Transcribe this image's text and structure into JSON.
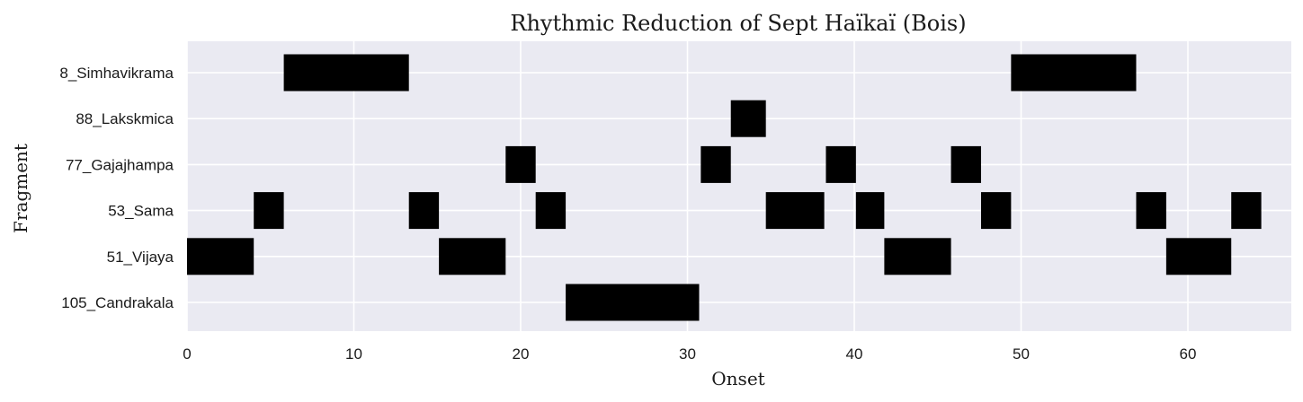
{
  "chart_data": {
    "type": "bar",
    "orientation": "horizontal-timeline",
    "title": "Rhythmic Reduction of Sept Haïkaï (Bois)",
    "xlabel": "Onset",
    "ylabel": "Fragment",
    "xlim": [
      0,
      66.2
    ],
    "xticks": [
      0,
      10,
      20,
      30,
      40,
      50,
      60
    ],
    "xtick_labels": [
      "0",
      "10",
      "20",
      "30",
      "40",
      "50",
      "60"
    ],
    "categories": [
      "8_Simhavikrama",
      "88_Lakskmica",
      "77_Gajajhampa",
      "53_Sama",
      "51_Vijaya",
      "105_Candrakala"
    ],
    "grid": true,
    "colors": {
      "plot_background": "#eaeaf2",
      "bar": "#000000",
      "grid": "#ffffff"
    },
    "segments": [
      {
        "fragment": "8_Simhavikrama",
        "start": 5.8,
        "end": 13.3
      },
      {
        "fragment": "8_Simhavikrama",
        "start": 49.4,
        "end": 56.9
      },
      {
        "fragment": "88_Lakskmica",
        "start": 32.6,
        "end": 34.7
      },
      {
        "fragment": "77_Gajajhampa",
        "start": 19.1,
        "end": 20.9
      },
      {
        "fragment": "77_Gajajhampa",
        "start": 30.8,
        "end": 32.6
      },
      {
        "fragment": "77_Gajajhampa",
        "start": 38.3,
        "end": 40.1
      },
      {
        "fragment": "77_Gajajhampa",
        "start": 45.8,
        "end": 47.6
      },
      {
        "fragment": "53_Sama",
        "start": 4.0,
        "end": 5.8
      },
      {
        "fragment": "53_Sama",
        "start": 13.3,
        "end": 15.1
      },
      {
        "fragment": "53_Sama",
        "start": 20.9,
        "end": 22.7
      },
      {
        "fragment": "53_Sama",
        "start": 34.7,
        "end": 38.2
      },
      {
        "fragment": "53_Sama",
        "start": 40.1,
        "end": 41.8
      },
      {
        "fragment": "53_Sama",
        "start": 47.6,
        "end": 49.4
      },
      {
        "fragment": "53_Sama",
        "start": 56.9,
        "end": 58.7
      },
      {
        "fragment": "53_Sama",
        "start": 62.6,
        "end": 64.4
      },
      {
        "fragment": "51_Vijaya",
        "start": 0.0,
        "end": 4.0
      },
      {
        "fragment": "51_Vijaya",
        "start": 15.1,
        "end": 19.1
      },
      {
        "fragment": "51_Vijaya",
        "start": 41.8,
        "end": 45.8
      },
      {
        "fragment": "51_Vijaya",
        "start": 58.7,
        "end": 62.6
      },
      {
        "fragment": "105_Candrakala",
        "start": 22.7,
        "end": 30.7
      }
    ]
  }
}
